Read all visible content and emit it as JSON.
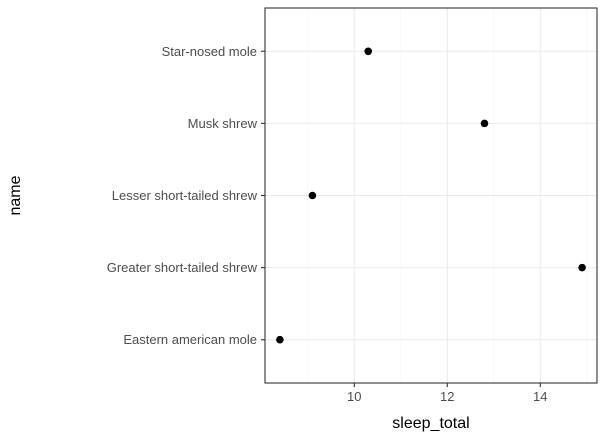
{
  "chart_data": {
    "type": "scatter",
    "xlabel": "sleep_total",
    "ylabel": "name",
    "xlim": [
      8.08,
      15.22
    ],
    "x_ticks": [
      10,
      12,
      14
    ],
    "x_tick_labels": [
      "10",
      "12",
      "14"
    ],
    "categories": [
      "Eastern american mole",
      "Greater short-tailed shrew",
      "Lesser short-tailed shrew",
      "Musk shrew",
      "Star-nosed mole"
    ],
    "points": [
      {
        "name": "Eastern american mole",
        "x": 8.4
      },
      {
        "name": "Greater short-tailed shrew",
        "x": 14.9
      },
      {
        "name": "Lesser short-tailed shrew",
        "x": 9.1
      },
      {
        "name": "Musk shrew",
        "x": 12.8
      },
      {
        "name": "Star-nosed mole",
        "x": 10.3
      }
    ],
    "grid": true,
    "theme": "bw",
    "colors": {
      "point": "#000000",
      "grid_major": "#ebebeb",
      "grid_minor": "#f5f5f5",
      "panel_border": "#333333"
    }
  }
}
